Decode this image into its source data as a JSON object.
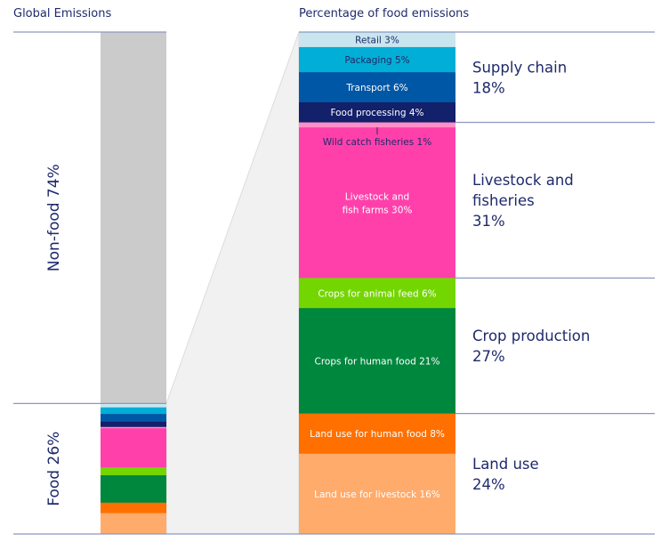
{
  "chart_data": {
    "type": "bar",
    "stacked": true,
    "left_chart": {
      "title": "Global Emissions",
      "segments": [
        {
          "label": "Non-food 74%",
          "value": 74,
          "color": "#cbcbcb"
        },
        {
          "label": "Food 26%",
          "value": 26,
          "color": "#ff40ab"
        }
      ]
    },
    "right_chart": {
      "title": "Percentage of food emissions",
      "categories": [
        "Retail",
        "Packaging",
        "Transport",
        "Food processing",
        "Wild catch fisheries",
        "Livestock and fish farms",
        "Crops for animal feed",
        "Crops for human food",
        "Land use for human food",
        "Land use for livestock"
      ],
      "segments": [
        {
          "label": [
            "Retail 3%"
          ],
          "value": 3,
          "color": "#c9e6ee",
          "text_color": "#1f2a6b"
        },
        {
          "label": [
            "Packaging 5%"
          ],
          "value": 5,
          "color": "#00aed6",
          "text_color": "#1f2a6b"
        },
        {
          "label": [
            "Transport 6%"
          ],
          "value": 6,
          "color": "#0057a6",
          "text_color": "#ffffff"
        },
        {
          "label": [
            "Food processing 4%"
          ],
          "value": 4,
          "color": "#13206a",
          "text_color": "#ffffff"
        },
        {
          "label": [
            "Wild catch fisheries 1%"
          ],
          "value": 1,
          "color": "#ff8fc8",
          "text_color": "#1f2a6b"
        },
        {
          "label": [
            "Livestock and",
            "fish farms 30%"
          ],
          "value": 30,
          "color": "#ff40ab",
          "text_color": "#ffffff"
        },
        {
          "label": [
            "Crops for animal feed 6%"
          ],
          "value": 6,
          "color": "#74d600",
          "text_color": "#ffffff"
        },
        {
          "label": [
            "Crops for human food 21%"
          ],
          "value": 21,
          "color": "#00873e",
          "text_color": "#ffffff"
        },
        {
          "label": [
            "Land use for human food 8%"
          ],
          "value": 8,
          "color": "#ff7000",
          "text_color": "#ffffff"
        },
        {
          "label": [
            "Land use for livestock 16%"
          ],
          "value": 16,
          "color": "#ffab6b",
          "text_color": "#ffffff"
        }
      ],
      "groups": [
        {
          "label": [
            "Supply chain",
            "18%"
          ],
          "value": 18
        },
        {
          "label": [
            "Livestock and",
            "fisheries",
            "31%"
          ],
          "value": 31
        },
        {
          "label": [
            "Crop production",
            "27%"
          ],
          "value": 27
        },
        {
          "label": [
            "Land use",
            "24%"
          ],
          "value": 24
        }
      ]
    },
    "colors": {
      "text": "#1f2a6b",
      "rule": "#8f97c0",
      "funnel": "#f1f1f1"
    }
  }
}
